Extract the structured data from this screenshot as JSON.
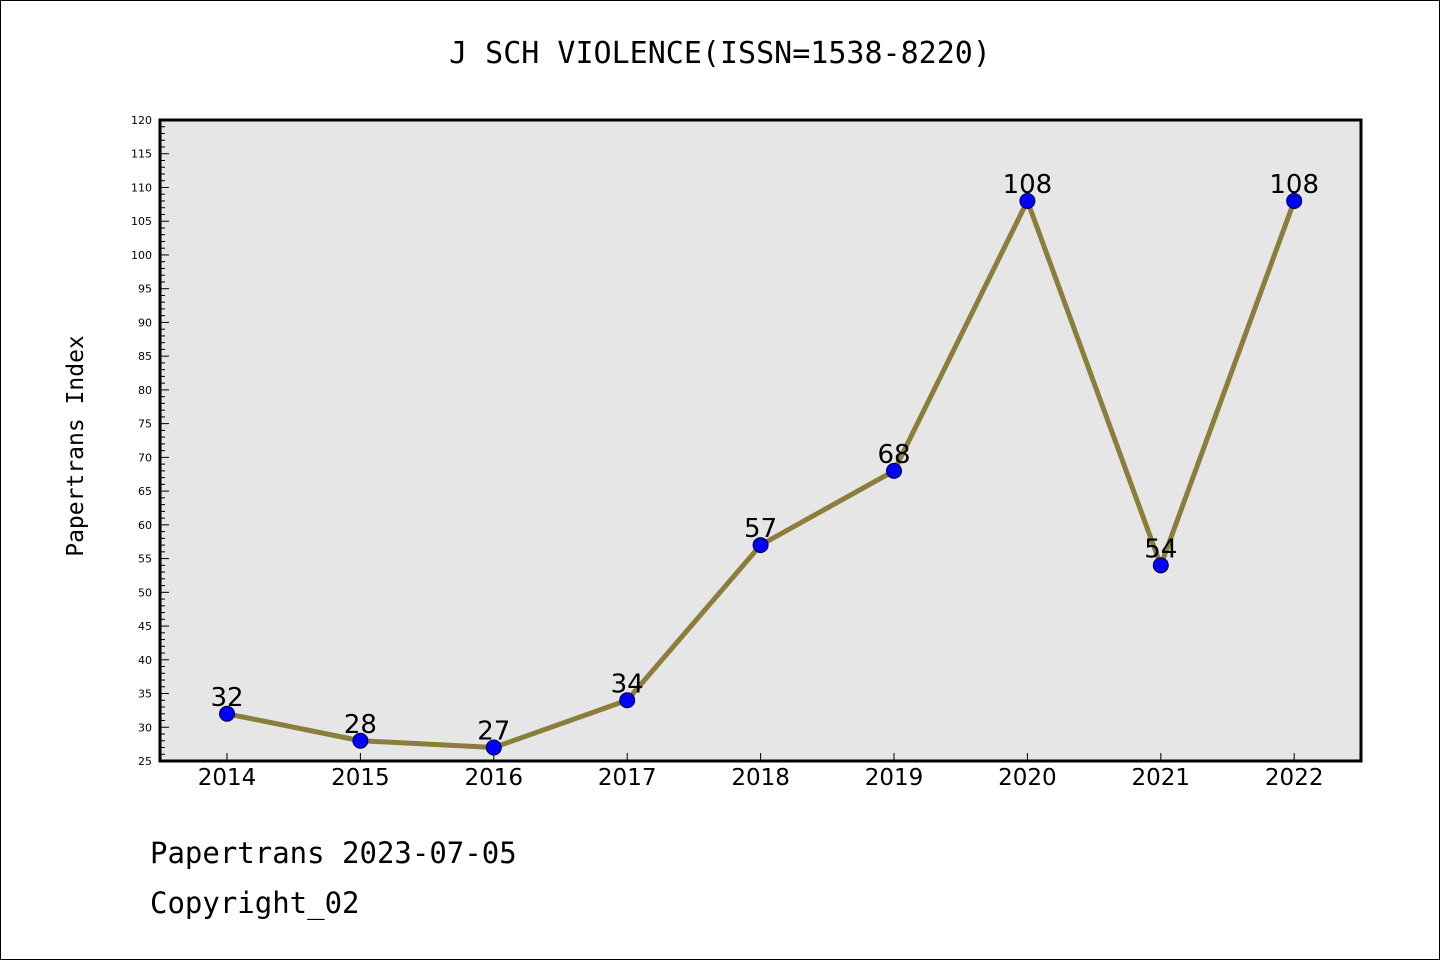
{
  "chart_data": {
    "type": "line",
    "title": "J SCH VIOLENCE(ISSN=1538-8220)",
    "xlabel": "",
    "ylabel": "Papertrans Index",
    "categories": [
      "2014",
      "2015",
      "2016",
      "2017",
      "2018",
      "2019",
      "2020",
      "2021",
      "2022"
    ],
    "series": [
      {
        "values": [
          32,
          28,
          27,
          34,
          57,
          68,
          108,
          54,
          108
        ]
      }
    ],
    "ylim": [
      25,
      120
    ],
    "ytick_step": 5,
    "grid": false,
    "legend": "none",
    "colors": {
      "line": "#8B7D3A",
      "marker": "#0000FF",
      "plot_background": "#E6E6E6"
    }
  },
  "footer": {
    "line1": "Papertrans 2023-07-05",
    "line2": "Copyright_02"
  }
}
